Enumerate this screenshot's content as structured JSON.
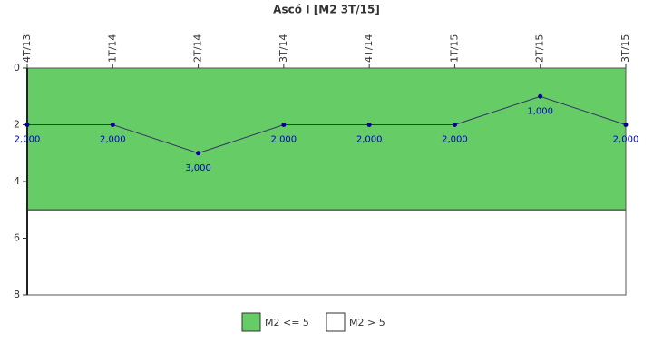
{
  "chart_data": {
    "type": "line",
    "title": "Ascó I [M2 3T/15]",
    "categories": [
      "4T/13",
      "1T/14",
      "2T/14",
      "3T/14",
      "4T/14",
      "1T/15",
      "2T/15",
      "3T/15"
    ],
    "series": [
      {
        "name": "M2",
        "color": "#333366",
        "marker_color": "#000099",
        "values": [
          2,
          2,
          3,
          2,
          2,
          2,
          1,
          2
        ],
        "value_labels": [
          "2,000",
          "2,000",
          "3,000",
          "2,000",
          "2,000",
          "2,000",
          "1,000",
          "2,000"
        ]
      }
    ],
    "bands": [
      {
        "name": "M2 <= 5",
        "color": "#66cc66",
        "from": 0,
        "to": 5
      },
      {
        "name": "M2 > 5",
        "color": "#ffffff",
        "from": 5,
        "to": 8
      }
    ],
    "ylim": [
      0,
      8
    ],
    "yticks": [
      0,
      2,
      4,
      6,
      8
    ],
    "y_inverted": true
  }
}
